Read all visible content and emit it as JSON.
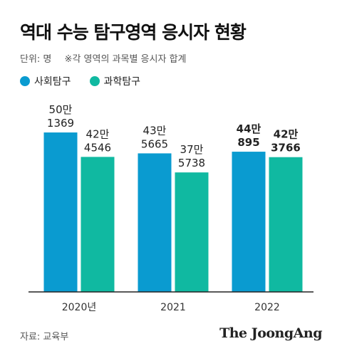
{
  "title": "역대 수능 탐구영역 응시자 현황",
  "unit": "단위: 명",
  "note": "※각 영역의 과목별 응시자 합계",
  "source": "자료: 교육부",
  "logo": "The JoongAng",
  "colors": {
    "social": "#0a9bd0",
    "science": "#10b9a1",
    "axis": "#222222",
    "label": "#222222"
  },
  "chart_data": {
    "type": "bar",
    "categories": [
      "2020년",
      "2021",
      "2022"
    ],
    "series": [
      {
        "name": "사회탐구",
        "values": [
          501369,
          435665,
          440895
        ],
        "labels": [
          [
            "50만",
            "1369"
          ],
          [
            "43만",
            "5665"
          ],
          [
            "44만",
            "895"
          ]
        ]
      },
      {
        "name": "과학탐구",
        "values": [
          424546,
          375738,
          423766
        ],
        "labels": [
          [
            "42만",
            "4546"
          ],
          [
            "37만",
            "5738"
          ],
          [
            "42만",
            "3766"
          ]
        ]
      }
    ],
    "bold_category_index": 2,
    "ylim": [
      0,
      600000
    ],
    "grid": false,
    "legend": "top-left"
  }
}
